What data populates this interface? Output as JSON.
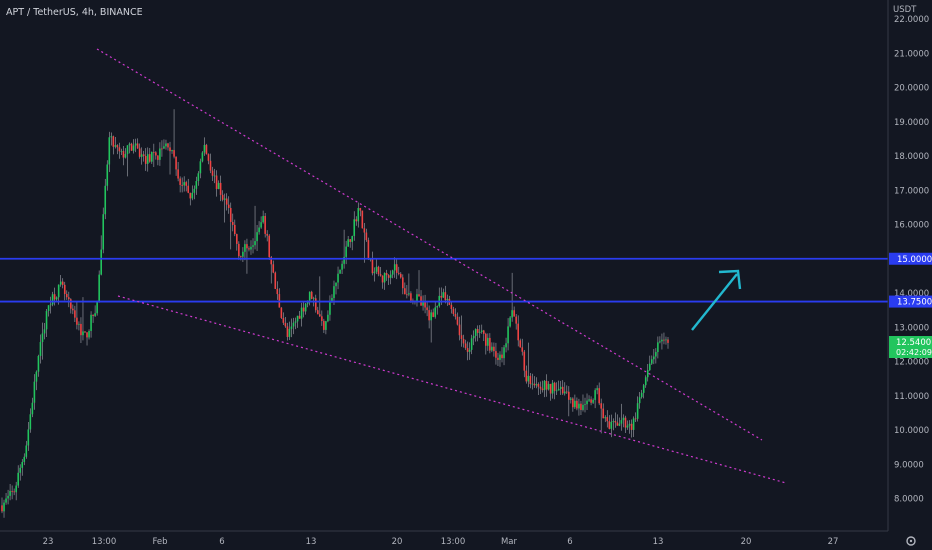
{
  "header": {
    "symbol_title": "APT / TetherUS, 4h, BINANCE"
  },
  "colors": {
    "background": "#131722",
    "up": "#22c55e",
    "down": "#ef4444",
    "wick": "#d1d4dc",
    "level_line": "#2a3cf0",
    "trendline": "#d03bd0",
    "arrow": "#22b8cf",
    "current_price_badge": "#22c55e"
  },
  "chart_data": {
    "type": "candlestick",
    "title": "APT / TetherUS, 4h, BINANCE",
    "currency_label": "USDT",
    "y_axis": {
      "range": [
        7.6,
        22.3
      ],
      "ticks": [
        "22.0000",
        "21.0000",
        "20.0000",
        "19.0000",
        "18.0000",
        "17.0000",
        "16.0000",
        "15.0000",
        "14.0000",
        "13.0000",
        "12.0000",
        "11.0000",
        "10.0000",
        "9.0000",
        "8.0000"
      ]
    },
    "x_axis": {
      "ticks": [
        "23",
        "13:00",
        "Feb",
        "6",
        "13",
        "20",
        "13:00",
        "Mar",
        "6",
        "13",
        "20",
        "27"
      ]
    },
    "horizontal_levels": [
      {
        "value": 15.0,
        "label": "15.0000"
      },
      {
        "value": 13.75,
        "label": "13.7500"
      }
    ],
    "current_price": {
      "value": 12.54,
      "label": "12.5400",
      "countdown": "02:42:09"
    },
    "pattern": "falling wedge",
    "trendlines": {
      "upper": {
        "from": {
          "x": "Jan 23 13:00",
          "y": 21.1
        },
        "to": {
          "x": "Mar 22",
          "y": 9.7
        }
      },
      "lower": {
        "from": {
          "x": "Jan 28",
          "y": 14.1
        },
        "to": {
          "x": "Mar 25",
          "y": 8.4
        }
      }
    },
    "projection_arrow": {
      "from": 13.7,
      "to": 15.0,
      "direction": "up"
    },
    "price_path": [
      7.8,
      8.2,
      9.5,
      12.0,
      13.8,
      14.2,
      13.3,
      12.7,
      13.7,
      18.5,
      18.0,
      18.3,
      17.9,
      18.0,
      18.4,
      17.2,
      16.8,
      18.3,
      17.2,
      16.5,
      15.1,
      15.5,
      16.1,
      14.1,
      12.7,
      13.4,
      14.0,
      13.0,
      14.2,
      15.3,
      16.5,
      14.8,
      14.4,
      14.8,
      14.0,
      13.8,
      13.3,
      13.9,
      13.5,
      12.2,
      12.9,
      12.5,
      12.0,
      13.6,
      11.6,
      11.4,
      11.2,
      11.3,
      10.8,
      10.6,
      11.1,
      10.0,
      10.3,
      10.1,
      11.3,
      12.4,
      12.54
    ]
  }
}
